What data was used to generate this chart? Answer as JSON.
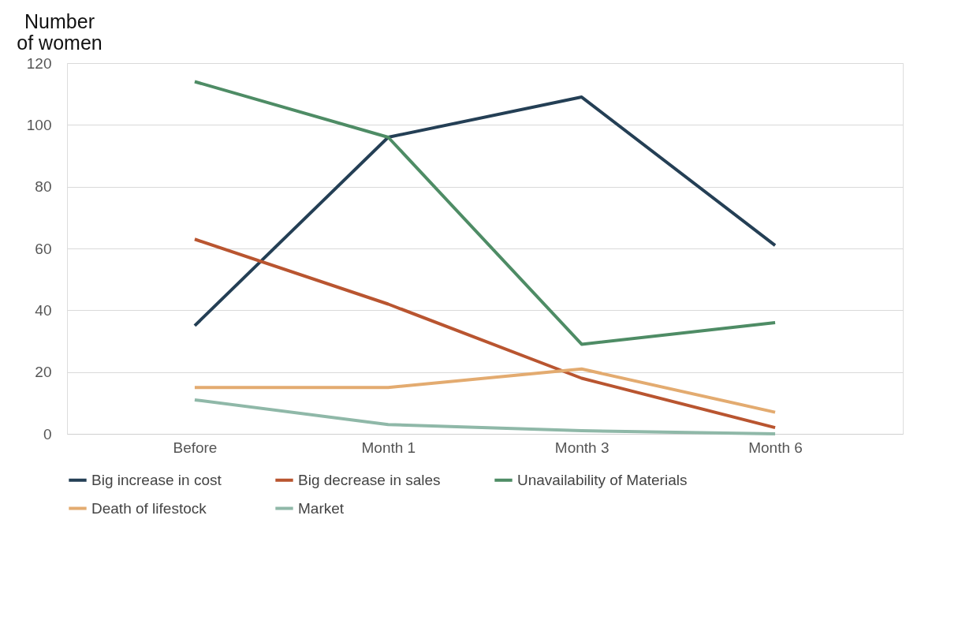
{
  "chart_data": {
    "type": "line",
    "ylabel": "Number of women",
    "categories": [
      "Before",
      "Month 1",
      "Month 3",
      "Month 6"
    ],
    "series": [
      {
        "name": "Big increase in cost",
        "color": "#243f55",
        "values": [
          35,
          96,
          109,
          61
        ]
      },
      {
        "name": "Big decrease in sales",
        "color": "#b95530",
        "values": [
          63,
          42,
          18,
          2
        ]
      },
      {
        "name": "Unavailability of Materials",
        "color": "#4e8c65",
        "values": [
          114,
          96,
          29,
          36
        ]
      },
      {
        "name": "Death of lifestock",
        "color": "#e3ab70",
        "values": [
          15,
          15,
          21,
          7
        ]
      },
      {
        "name": "Market",
        "color": "#8fb8a8",
        "values": [
          11,
          3,
          1,
          0
        ]
      }
    ],
    "ylim": [
      0,
      120
    ],
    "yticks": [
      0,
      20,
      40,
      60,
      80,
      100,
      120
    ],
    "grid": "y",
    "legend": "bottom",
    "marker": "none",
    "line_style": "solid"
  }
}
